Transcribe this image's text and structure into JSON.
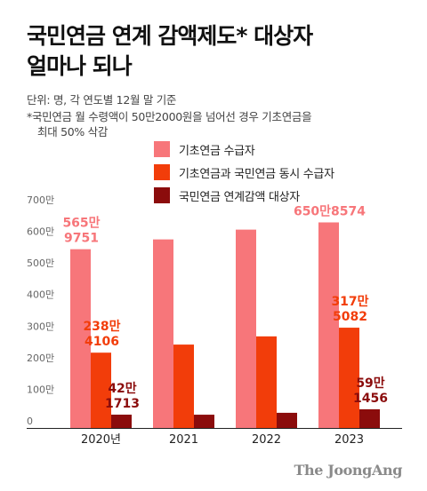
{
  "title_line1": "국민연금 연계 감액제도* 대상자",
  "title_line2": "얼마나 되나",
  "note_unit": "단위: 명, 각 연도별 12월 말 기준",
  "note_footnote_line1": "*국민연금 월 수령액이 50만2000원을 넘어선 경우 기초연금을",
  "note_footnote_line2": "최대 50% 삭감",
  "credit": "The JoongAng",
  "chart_data": {
    "type": "bar",
    "categories": [
      "2020년",
      "2021",
      "2022",
      "2023"
    ],
    "ylim": [
      0,
      700
    ],
    "yticks": [
      "0",
      "100만",
      "200만",
      "300만",
      "400만",
      "500만",
      "600만",
      "700만"
    ],
    "grid": false,
    "legend_position": "top",
    "series": [
      {
        "name": "기초연금 수급자",
        "color": "#f7767a",
        "values": [
          565.9751,
          597,
          628,
          650.8574
        ],
        "labels": [
          [
            "565만",
            "9751"
          ],
          null,
          null,
          [
            "650만8574"
          ]
        ]
      },
      {
        "name": "기초연금과 국민연금 동시 수급자",
        "color": "#f23d0a",
        "values": [
          238.4106,
          264,
          290,
          317.5082
        ],
        "labels": [
          [
            "238만",
            "4106"
          ],
          null,
          null,
          [
            "317만",
            "5082"
          ]
        ]
      },
      {
        "name": "국민연금 연계감액 대상자",
        "color": "#8b0c0c",
        "values": [
          42.1713,
          42,
          48,
          59.1456
        ],
        "labels": [
          [
            "42만",
            "1713"
          ],
          null,
          null,
          [
            "59만",
            "1456"
          ]
        ]
      }
    ]
  }
}
